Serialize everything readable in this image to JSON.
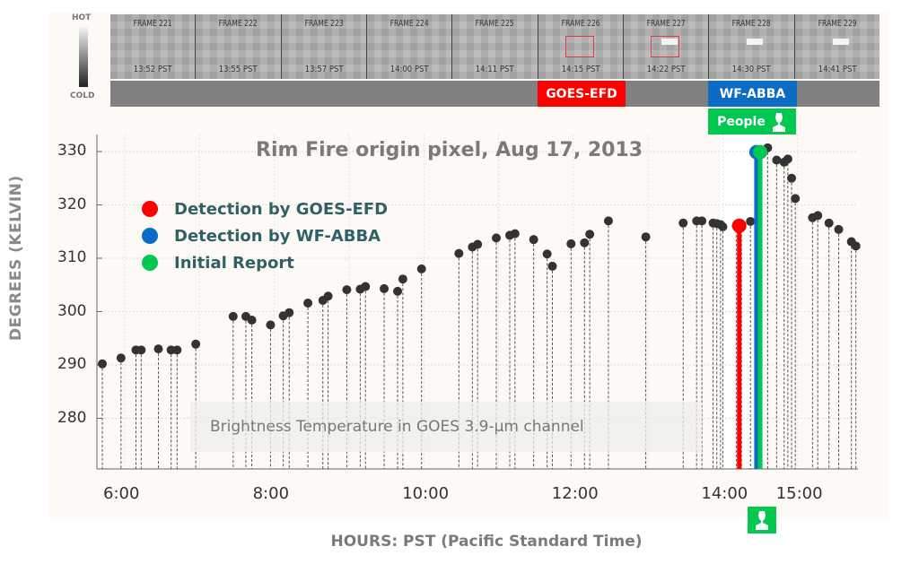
{
  "colorbar": {
    "hot_label": "HOT",
    "cold_label": "COLD"
  },
  "frames": [
    {
      "name": "FRAME 221",
      "time": "13:52 PST",
      "box": false,
      "hot": false
    },
    {
      "name": "FRAME 222",
      "time": "13:55 PST",
      "box": false,
      "hot": false
    },
    {
      "name": "FRAME 223",
      "time": "13:57 PST",
      "box": false,
      "hot": false
    },
    {
      "name": "FRAME 224",
      "time": "14:00 PST",
      "box": false,
      "hot": false
    },
    {
      "name": "FRAME 225",
      "time": "14:11 PST",
      "box": false,
      "hot": false
    },
    {
      "name": "FRAME 226",
      "time": "14:15 PST",
      "box": true,
      "hot": false
    },
    {
      "name": "FRAME 227",
      "time": "14:22 PST",
      "box": true,
      "hot": true
    },
    {
      "name": "FRAME 228",
      "time": "14:30 PST",
      "box": false,
      "hot": true
    },
    {
      "name": "FRAME 229",
      "time": "14:41 PST",
      "box": false,
      "hot": true
    }
  ],
  "tags": {
    "goes": "GOES-EFD",
    "abba": "WF-ABBA",
    "people": "People"
  },
  "colors": {
    "goes": "#ff0000",
    "abba": "#0a6cc4",
    "report": "#00c851",
    "point": "#333333"
  },
  "chart_data": {
    "type": "scatter",
    "title": "Rim Fire origin pixel,  Aug 17, 2013",
    "xlabel": "HOURS: PST (Pacific Standard Time)",
    "ylabel": "DEGREES (KELVIN)",
    "annotation": "Brightness Temperature in GOES 3.9-µm channel",
    "xticks": [
      "6:00",
      "8:00",
      "10:00",
      "12:00",
      "14:00",
      "15:00"
    ],
    "yticks": [
      280,
      290,
      300,
      310,
      320,
      330
    ],
    "ylim": [
      273,
      333
    ],
    "xlim_hours": [
      5.65,
      15.85
    ],
    "grid": true,
    "legend": [
      {
        "label": "Detection by GOES-EFD",
        "color": "#ff0000"
      },
      {
        "label": "Detection by WF-ABBA",
        "color": "#0a6cc4"
      },
      {
        "label": "Initial Report",
        "color": "#00c851"
      }
    ],
    "series": [
      {
        "name": "Brightness Temperature",
        "x": [
          5.7,
          5.95,
          6.15,
          6.22,
          6.45,
          6.62,
          6.7,
          6.95,
          7.45,
          7.62,
          7.7,
          7.95,
          8.12,
          8.2,
          8.45,
          8.65,
          8.72,
          8.97,
          9.15,
          9.22,
          9.47,
          9.65,
          9.72,
          9.97,
          10.47,
          10.65,
          10.72,
          10.97,
          11.15,
          11.22,
          11.47,
          11.65,
          11.72,
          11.97,
          12.15,
          12.22,
          12.47,
          12.97,
          13.47,
          13.65,
          13.72,
          13.87,
          13.92,
          13.97,
          14.0,
          14.18,
          14.25,
          14.37,
          14.6,
          14.72,
          14.82,
          14.87,
          14.92,
          14.97,
          15.2,
          15.27,
          15.42,
          15.55,
          15.72,
          15.78
        ],
        "values": [
          290.2,
          291.3,
          292.8,
          292.8,
          293.0,
          292.8,
          292.8,
          293.9,
          299.1,
          299.1,
          298.4,
          297.5,
          299.2,
          299.8,
          301.6,
          302.1,
          302.9,
          304.1,
          304.2,
          304.7,
          304.3,
          303.8,
          306.1,
          308.0,
          310.9,
          312.1,
          312.6,
          313.8,
          314.3,
          314.6,
          313.5,
          310.8,
          308.5,
          312.7,
          312.9,
          314.5,
          317.0,
          314.0,
          316.6,
          317.0,
          317.0,
          316.6,
          316.5,
          316.3,
          315.9,
          316.1,
          316.1,
          316.9,
          330.7,
          328.4,
          328.0,
          328.6,
          325.0,
          321.2,
          317.6,
          318.0,
          316.6,
          315.4,
          313.1,
          312.3
        ]
      },
      {
        "name": "Detection by GOES-EFD",
        "x": [
          14.22
        ],
        "values": [
          316.1
        ],
        "color": "#ff0000"
      },
      {
        "name": "Detection by WF-ABBA",
        "x": [
          14.45
        ],
        "values": [
          329.9
        ],
        "color": "#0a6cc4"
      },
      {
        "name": "Initial Report",
        "x": [
          14.5
        ],
        "values": [
          329.9
        ],
        "color": "#00c851"
      }
    ]
  }
}
